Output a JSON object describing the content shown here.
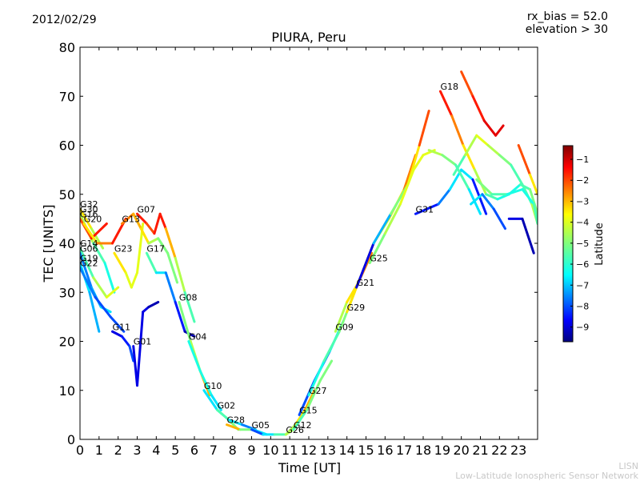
{
  "header": {
    "date": "2012/02/29",
    "rx_bias": "rx_bias = 52.0",
    "elevation": "elevation > 30"
  },
  "footer": {
    "line1": "LISN",
    "line2": "Low-Latitude Ionospheric Sensor Network"
  },
  "colors": {
    "jet": [
      "#00007f",
      "#0000ff",
      "#007fff",
      "#00ffff",
      "#7fff7f",
      "#ffff00",
      "#ff7f00",
      "#ff0000",
      "#7f0000"
    ]
  },
  "chart_data": {
    "type": "scatter",
    "title": "PIURA, Peru",
    "xlabel": "Time [UT]",
    "ylabel": "TEC [UNITS]",
    "xlim": [
      0,
      24
    ],
    "ylim": [
      0,
      80
    ],
    "xticks": [
      "0",
      "1",
      "2",
      "3",
      "4",
      "5",
      "6",
      "7",
      "8",
      "9",
      "10",
      "11",
      "12",
      "13",
      "14",
      "15",
      "16",
      "17",
      "18",
      "19",
      "20",
      "21",
      "22",
      "23"
    ],
    "yticks": [
      "0",
      "10",
      "20",
      "30",
      "40",
      "50",
      "60",
      "70",
      "80"
    ],
    "colorbar": {
      "label": "Latitude",
      "min": -10,
      "max": 0,
      "ticks": [
        "−1",
        "−2",
        "−3",
        "−4",
        "−5",
        "−6",
        "−7",
        "−8",
        "−9"
      ]
    },
    "series": [
      {
        "name": "G32",
        "x": [
          0,
          0.6,
          1.2
        ],
        "y": [
          47,
          43,
          39
        ],
        "c": [
          -3,
          -4,
          -5
        ]
      },
      {
        "name": "G30",
        "x": [
          0,
          0.7,
          1.3,
          1.8
        ],
        "y": [
          46,
          40,
          36,
          30
        ],
        "c": [
          -4,
          -5,
          -6,
          -6
        ]
      },
      {
        "name": "G16",
        "x": [
          0,
          0.6,
          1.4
        ],
        "y": [
          45,
          41,
          44
        ],
        "c": [
          -2,
          -2,
          -1
        ]
      },
      {
        "name": "G20",
        "x": [
          0.2,
          0.9,
          1.7,
          2.4
        ],
        "y": [
          44,
          40,
          40,
          45
        ],
        "c": [
          -4,
          -3,
          -2,
          -1
        ]
      },
      {
        "name": "G14",
        "x": [
          0,
          0.7,
          1.4,
          2.0
        ],
        "y": [
          39,
          33,
          29,
          31
        ],
        "c": [
          -6,
          -5,
          -4,
          -4
        ]
      },
      {
        "name": "G06",
        "x": [
          0,
          0.6,
          1.1,
          1.6
        ],
        "y": [
          38,
          31,
          27,
          26
        ],
        "c": [
          -8,
          -7,
          -7,
          -6
        ]
      },
      {
        "name": "G19",
        "x": [
          0,
          0.5,
          1.0
        ],
        "y": [
          36,
          30,
          22
        ],
        "c": [
          -6,
          -7,
          -7
        ]
      },
      {
        "name": "G22",
        "x": [
          0,
          0.8,
          1.6,
          2.3
        ],
        "y": [
          35,
          29,
          25,
          22
        ],
        "c": [
          -7,
          -8,
          -8,
          -8
        ]
      },
      {
        "name": "G23",
        "x": [
          1.8,
          2.4,
          2.7,
          3.0,
          3.3
        ],
        "y": [
          38,
          34,
          31,
          34,
          44
        ],
        "c": [
          -3,
          -4,
          -4,
          -4,
          -4
        ]
      },
      {
        "name": "G13",
        "x": [
          2.2,
          2.8,
          3.2,
          3.6,
          4.1,
          4.6,
          5.1
        ],
        "y": [
          44,
          46,
          43,
          40,
          41,
          38,
          32
        ],
        "c": [
          -2,
          -3,
          -3,
          -4,
          -5,
          -5,
          -5
        ]
      },
      {
        "name": "G07",
        "x": [
          3.0,
          3.5,
          3.9,
          4.2,
          4.5,
          5.0,
          5.5,
          6.0
        ],
        "y": [
          46,
          44,
          42,
          46,
          43,
          37,
          30,
          24
        ],
        "c": [
          -1,
          -2,
          -2,
          -1,
          -2,
          -4,
          -5,
          -6
        ]
      },
      {
        "name": "G17",
        "x": [
          3.5,
          4.0,
          4.5,
          5.0,
          5.5,
          6.0
        ],
        "y": [
          38,
          34,
          34,
          28,
          22,
          21
        ],
        "c": [
          -5,
          -6,
          -7,
          -8,
          -9,
          -10
        ]
      },
      {
        "name": "G11",
        "x": [
          1.7,
          2.2,
          2.6,
          2.8
        ],
        "y": [
          22,
          21,
          19,
          16
        ],
        "c": [
          -9,
          -9,
          -8,
          -8
        ]
      },
      {
        "name": "G01",
        "x": [
          2.8,
          3.0,
          3.3,
          3.6,
          4.1
        ],
        "y": [
          19,
          11,
          26,
          27,
          28
        ],
        "c": [
          -9,
          -9,
          -9,
          -9,
          -10
        ]
      },
      {
        "name": "G08",
        "x": [
          5.2,
          5.8,
          6.3,
          6.8
        ],
        "y": [
          28,
          20,
          14,
          9
        ],
        "c": [
          -5,
          -5,
          -4,
          -2
        ]
      },
      {
        "name": "G04",
        "x": [
          5.7,
          6.3,
          6.9,
          7.4
        ],
        "y": [
          20,
          14,
          9,
          6
        ],
        "c": [
          -6,
          -6,
          -6,
          -7
        ]
      },
      {
        "name": "G10",
        "x": [
          6.5,
          7.2,
          7.8,
          8.3
        ],
        "y": [
          10,
          6,
          4,
          2
        ],
        "c": [
          -7,
          -6,
          -5,
          -5
        ]
      },
      {
        "name": "G02",
        "x": [
          7.2,
          7.8,
          8.5,
          9.2
        ],
        "y": [
          6,
          4,
          3,
          2
        ],
        "c": [
          -5,
          -6,
          -7,
          -8
        ]
      },
      {
        "name": "G28",
        "x": [
          7.7,
          8.4,
          9.1,
          9.8
        ],
        "y": [
          3,
          2,
          2,
          1
        ],
        "c": [
          -2,
          -4,
          -6,
          -7
        ]
      },
      {
        "name": "G05",
        "x": [
          9.0,
          9.6,
          10.2,
          10.8,
          11.2
        ],
        "y": [
          2,
          1,
          1,
          1,
          2
        ],
        "c": [
          -9,
          -7,
          -6,
          -5,
          -4
        ]
      },
      {
        "name": "G26",
        "x": [
          10.8,
          11.3,
          11.8,
          12.3
        ],
        "y": [
          1,
          3,
          6,
          10
        ],
        "c": [
          -5,
          -4,
          -3,
          -3
        ]
      },
      {
        "name": "G12",
        "x": [
          11.2,
          11.9,
          12.6,
          13.2
        ],
        "y": [
          2,
          6,
          12,
          16
        ],
        "c": [
          -6,
          -5,
          -5,
          -5
        ]
      },
      {
        "name": "G15",
        "x": [
          11.5,
          12.3,
          13.1,
          13.8
        ],
        "y": [
          5,
          12,
          18,
          24
        ],
        "c": [
          -8,
          -8,
          -7,
          -6
        ]
      },
      {
        "name": "G27",
        "x": [
          12.0,
          12.8,
          13.6,
          14.4
        ],
        "y": [
          9,
          16,
          22,
          30
        ],
        "c": [
          -6,
          -6,
          -5,
          -5
        ]
      },
      {
        "name": "G09",
        "x": [
          13.4,
          14.0,
          14.6,
          15.3
        ],
        "y": [
          22,
          28,
          32,
          38
        ],
        "c": [
          -5,
          -4,
          -3,
          -2
        ]
      },
      {
        "name": "G29",
        "x": [
          14.0,
          14.7,
          15.4,
          16.2,
          17.0,
          17.6
        ],
        "y": [
          26,
          33,
          40,
          45,
          51,
          58
        ],
        "c": [
          -4,
          -3,
          -4,
          -4,
          -3,
          -2
        ]
      },
      {
        "name": "G21",
        "x": [
          14.5,
          15.4,
          16.3,
          17.2,
          17.8,
          18.3
        ],
        "y": [
          31,
          40,
          46,
          52,
          60,
          67
        ],
        "c": [
          -10,
          -8,
          -6,
          -4,
          -3,
          -1
        ]
      },
      {
        "name": "G25",
        "x": [
          15.2,
          16.0,
          16.8,
          17.5,
          18.0,
          18.6
        ],
        "y": [
          36,
          42,
          48,
          55,
          58,
          59
        ],
        "c": [
          -5,
          -5,
          -4,
          -4,
          -4,
          -4
        ]
      },
      {
        "name": "G31",
        "x": [
          17.6,
          18.2,
          18.8,
          19.4,
          20.0,
          20.6,
          21.3
        ],
        "y": [
          46,
          47,
          48,
          51,
          55,
          53,
          46
        ],
        "c": [
          -8,
          -9,
          -8,
          -7,
          -6,
          -7,
          -10
        ]
      },
      {
        "name": "G18",
        "x": [
          18.9,
          19.5,
          20.1,
          20.7,
          21.3,
          21.9,
          22.5,
          23.1,
          23.6,
          24
        ],
        "y": [
          71,
          66,
          60,
          55,
          50,
          49,
          50,
          52,
          51,
          46
        ],
        "c": [
          -1,
          -2,
          -3,
          -4,
          -5,
          -6,
          -6,
          -6,
          -5,
          -5
        ]
      },
      {
        "name": "",
        "x": [
          18.3,
          19.0,
          19.7,
          20.4,
          21.0
        ],
        "y": [
          59,
          58,
          56,
          51,
          46
        ],
        "c": [
          -4,
          -5,
          -5,
          -6,
          -7
        ]
      },
      {
        "name": "",
        "x": [
          19.6,
          20.2,
          20.8,
          21.4,
          22.0,
          22.6,
          23.2,
          23.7,
          24
        ],
        "y": [
          54,
          58,
          62,
          60,
          58,
          56,
          52,
          48,
          44
        ],
        "c": [
          -6,
          -5,
          -4,
          -4,
          -5,
          -5,
          -6,
          -5,
          -4
        ]
      },
      {
        "name": "",
        "x": [
          20.0,
          20.6,
          21.2,
          21.8,
          22.2
        ],
        "y": [
          75,
          70,
          65,
          62,
          64
        ],
        "c": [
          -2,
          -2,
          -1,
          -1,
          -1
        ]
      },
      {
        "name": "",
        "x": [
          20.5,
          21.1,
          21.7,
          22.3
        ],
        "y": [
          48,
          50,
          47,
          43
        ],
        "c": [
          -6,
          -7,
          -8,
          -8
        ]
      },
      {
        "name": "",
        "x": [
          22.5,
          23.2,
          23.8
        ],
        "y": [
          45,
          45,
          38
        ],
        "c": [
          -9,
          -9,
          -10
        ]
      },
      {
        "name": "",
        "x": [
          23.0,
          23.6,
          24
        ],
        "y": [
          60,
          54,
          50
        ],
        "c": [
          -1,
          -3,
          -4
        ]
      },
      {
        "name": "",
        "x": [
          20.8,
          21.6,
          22.4,
          23.2,
          23.8,
          24
        ],
        "y": [
          53,
          50,
          50,
          51,
          48,
          44
        ],
        "c": [
          -5,
          -5,
          -6,
          -6,
          -6,
          -5
        ]
      }
    ]
  }
}
